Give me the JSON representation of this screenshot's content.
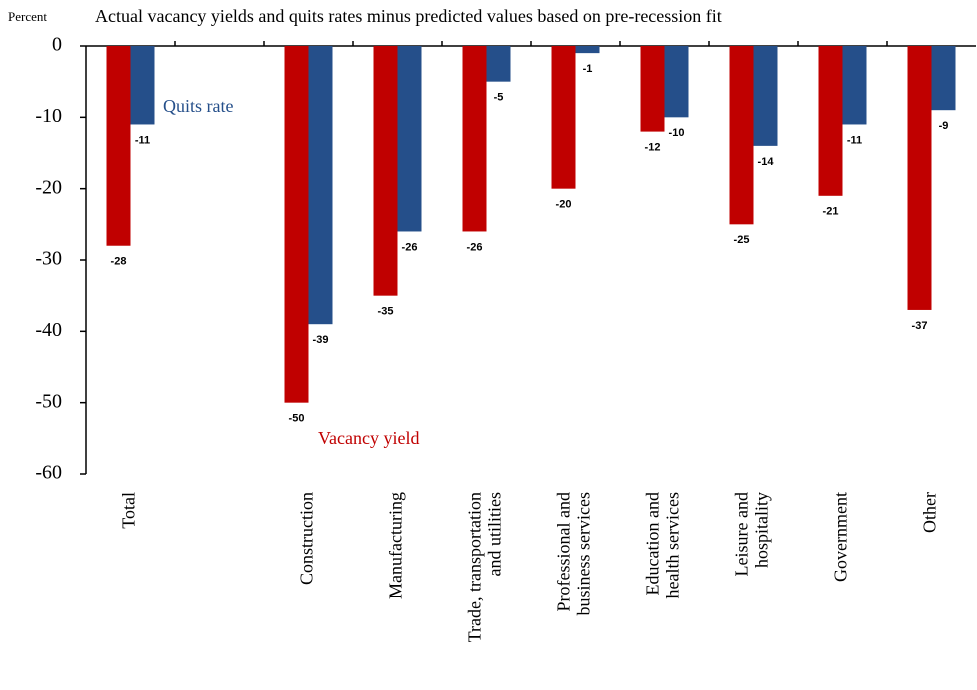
{
  "chart_data": {
    "type": "bar",
    "title": "Actual vacancy yields and quits rates minus predicted values based on pre-recession fit",
    "y_label": "Percent",
    "categories": [
      "Total",
      null,
      "Construction",
      "Manufacturing",
      "Trade, transportation\nand utilities",
      "Professional and\nbusiness services",
      "Education and\nhealth services",
      "Leisure and\nhospitality",
      "Government",
      "Other"
    ],
    "series": [
      {
        "name": "Vacancy yield",
        "color": "#c00000",
        "values": [
          -28,
          null,
          -50,
          -35,
          -26,
          -20,
          -12,
          -25,
          -21,
          -37
        ]
      },
      {
        "name": "Quits rate",
        "color": "#254f8a",
        "values": [
          -11,
          null,
          -39,
          -26,
          -5,
          -1,
          -10,
          -14,
          -11,
          -9
        ]
      }
    ],
    "ylim": [
      -60,
      0
    ],
    "yticks": [
      0,
      -10,
      -20,
      -30,
      -40,
      -50,
      -60
    ]
  }
}
